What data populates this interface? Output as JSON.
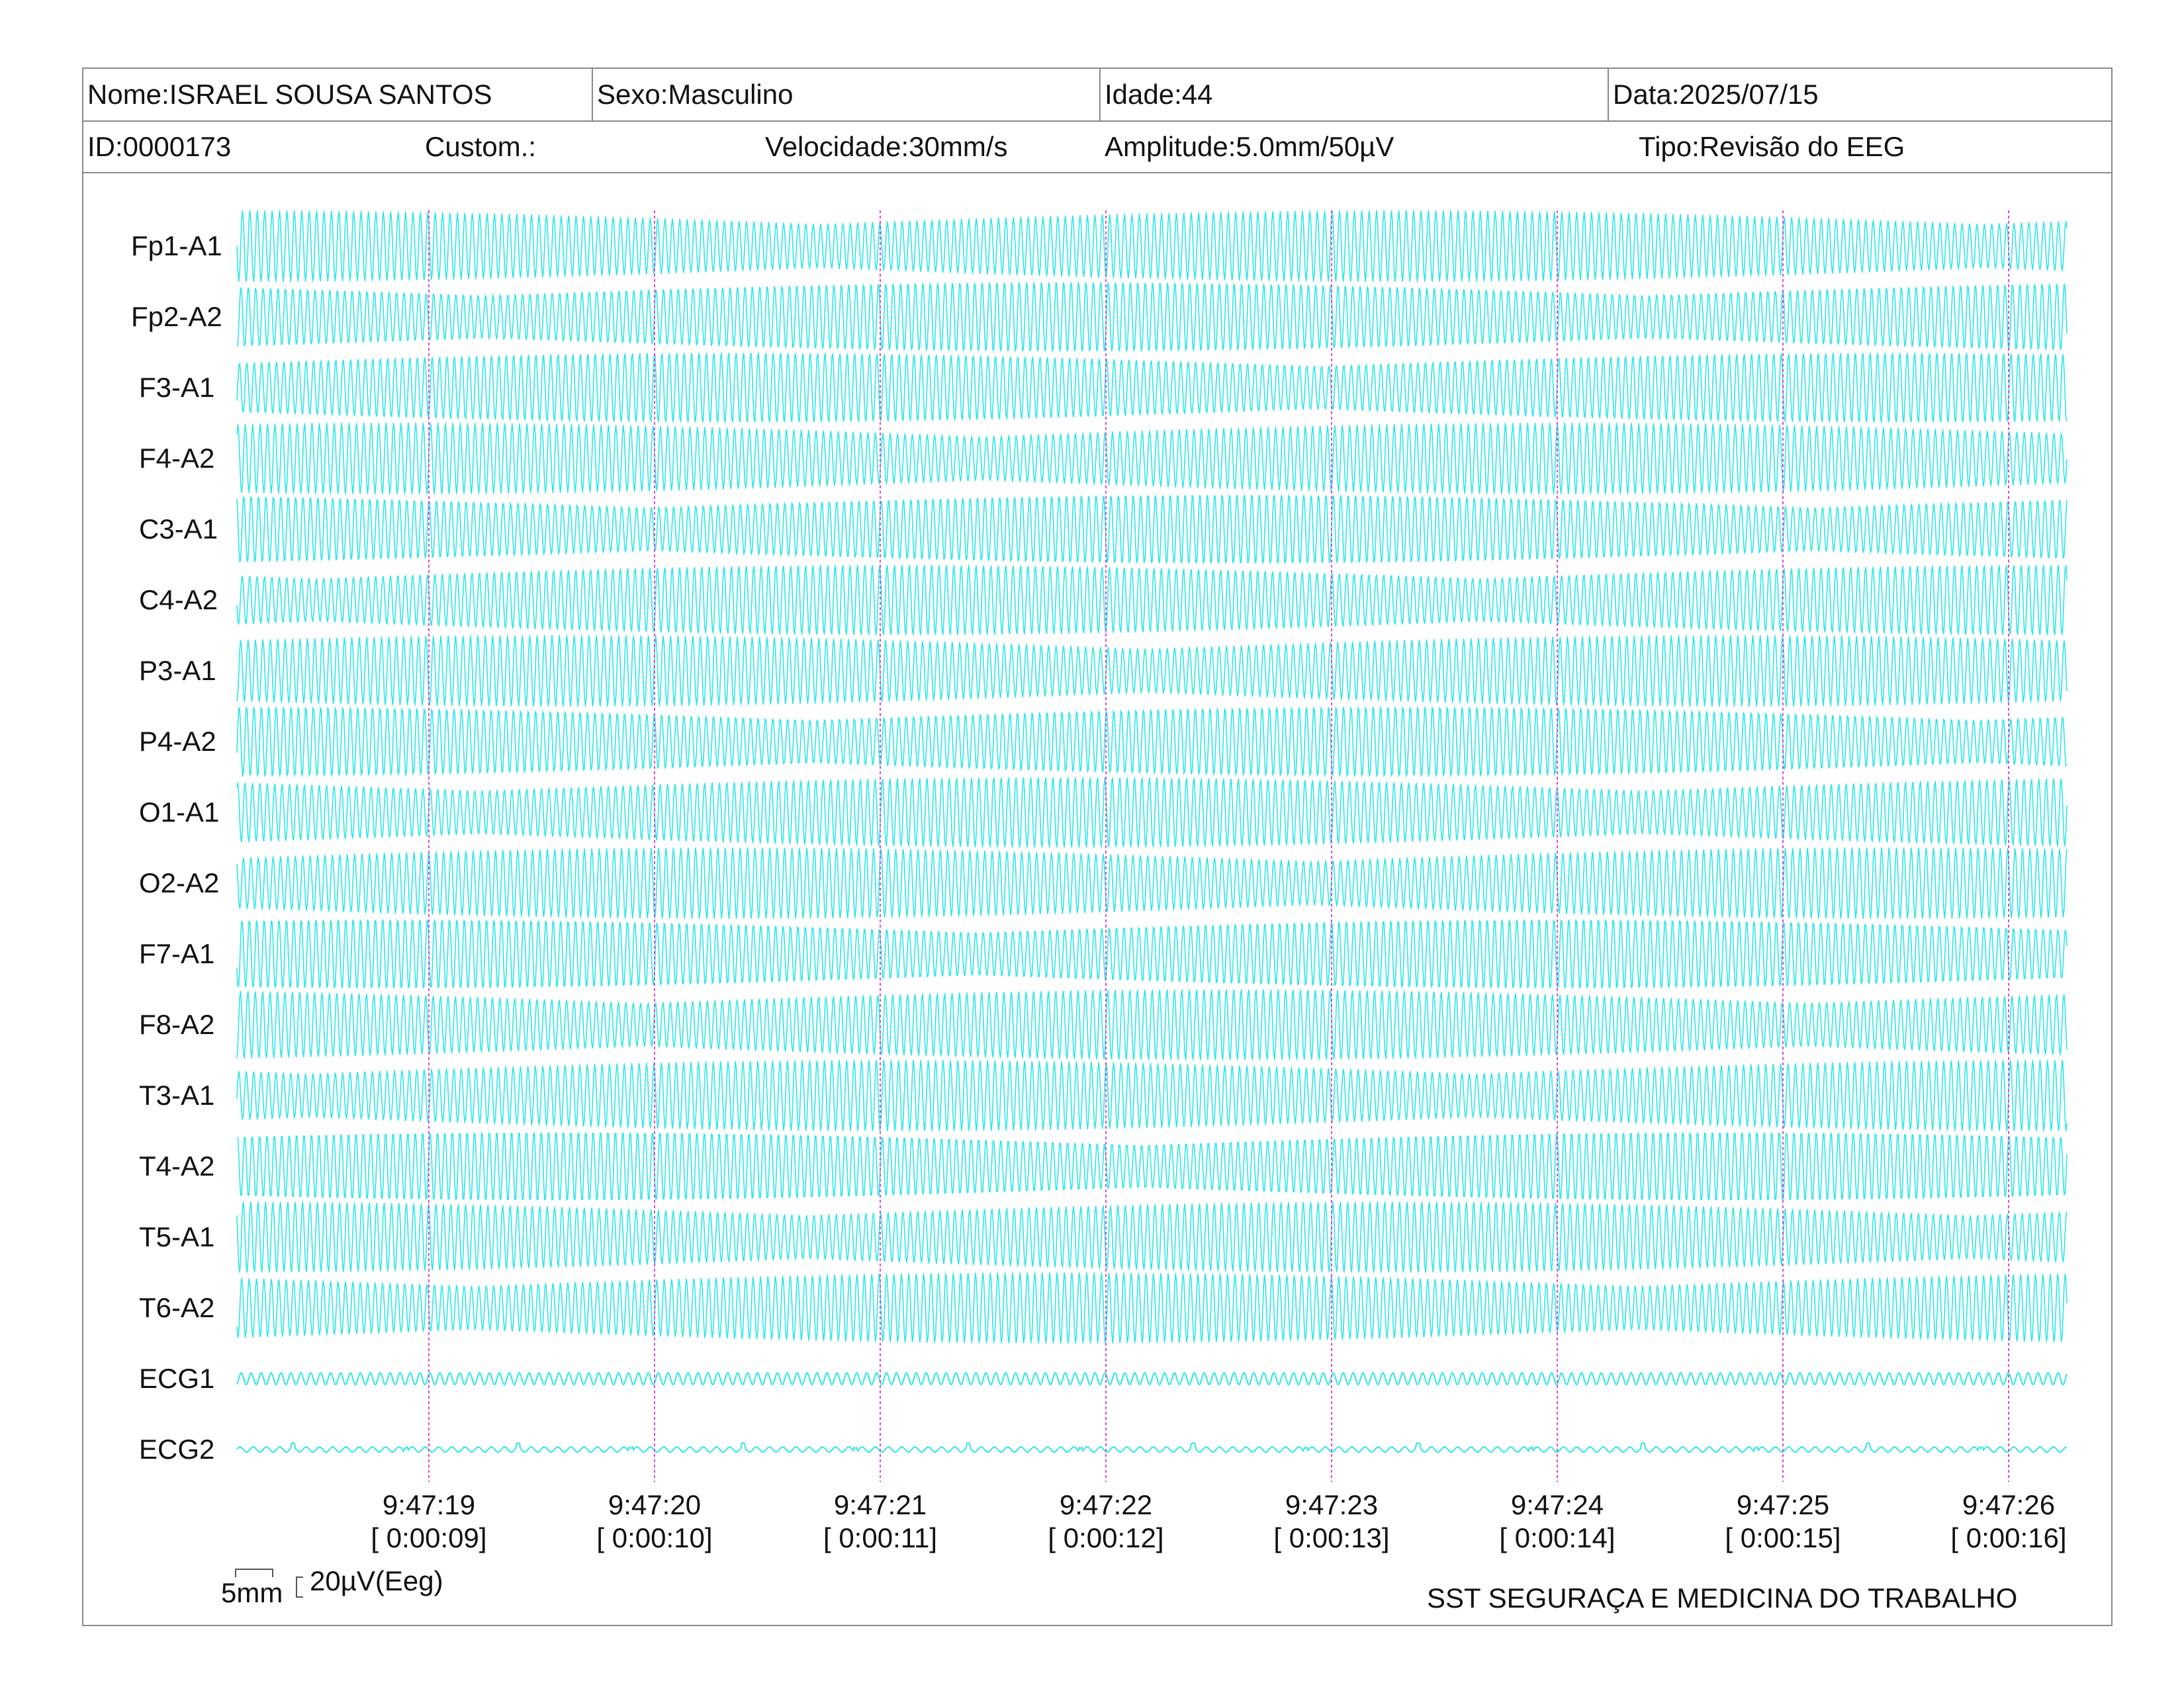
{
  "header": {
    "nome": "Nome:ISRAEL SOUSA SANTOS",
    "sexo": "Sexo:Masculino",
    "idade": "Idade:44",
    "data": "Data:2025/07/15",
    "id": "ID:0000173",
    "custom": "Custom.:",
    "velocidade": "Velocidade:30mm/s",
    "amplitude": "Amplitude:5.0mm/50µV",
    "tipo": "Tipo:Revisão do EEG"
  },
  "channels": [
    "Fp1-A1",
    "Fp2-A2",
    "F3-A1",
    "F4-A2",
    "C3-A1",
    "C4-A2",
    "P3-A1",
    "P4-A2",
    "O1-A1",
    "O2-A2",
    "F7-A1",
    "F8-A2",
    "T3-A1",
    "T4-A2",
    "T5-A1",
    "T6-A2",
    "ECG1",
    "ECG2"
  ],
  "time_marks": [
    {
      "clock": "9:47:19",
      "elapsed": "[ 0:00:09]"
    },
    {
      "clock": "9:47:20",
      "elapsed": "[ 0:00:10]"
    },
    {
      "clock": "9:47:21",
      "elapsed": "[ 0:00:11]"
    },
    {
      "clock": "9:47:22",
      "elapsed": "[ 0:00:12]"
    },
    {
      "clock": "9:47:23",
      "elapsed": "[ 0:00:13]"
    },
    {
      "clock": "9:47:24",
      "elapsed": "[ 0:00:14]"
    },
    {
      "clock": "9:47:25",
      "elapsed": "[ 0:00:15]"
    },
    {
      "clock": "9:47:26",
      "elapsed": "[ 0:00:16]"
    }
  ],
  "scale": {
    "time_label": "5mm",
    "amp_label": "20µV(Eeg)"
  },
  "footer": {
    "organization": "SST SEGURAÇA E MEDICINA DO TRABALHO"
  },
  "colors": {
    "trace": "#2ee6e6",
    "marker": "#e040e0",
    "border": "#8a8a8a"
  }
}
